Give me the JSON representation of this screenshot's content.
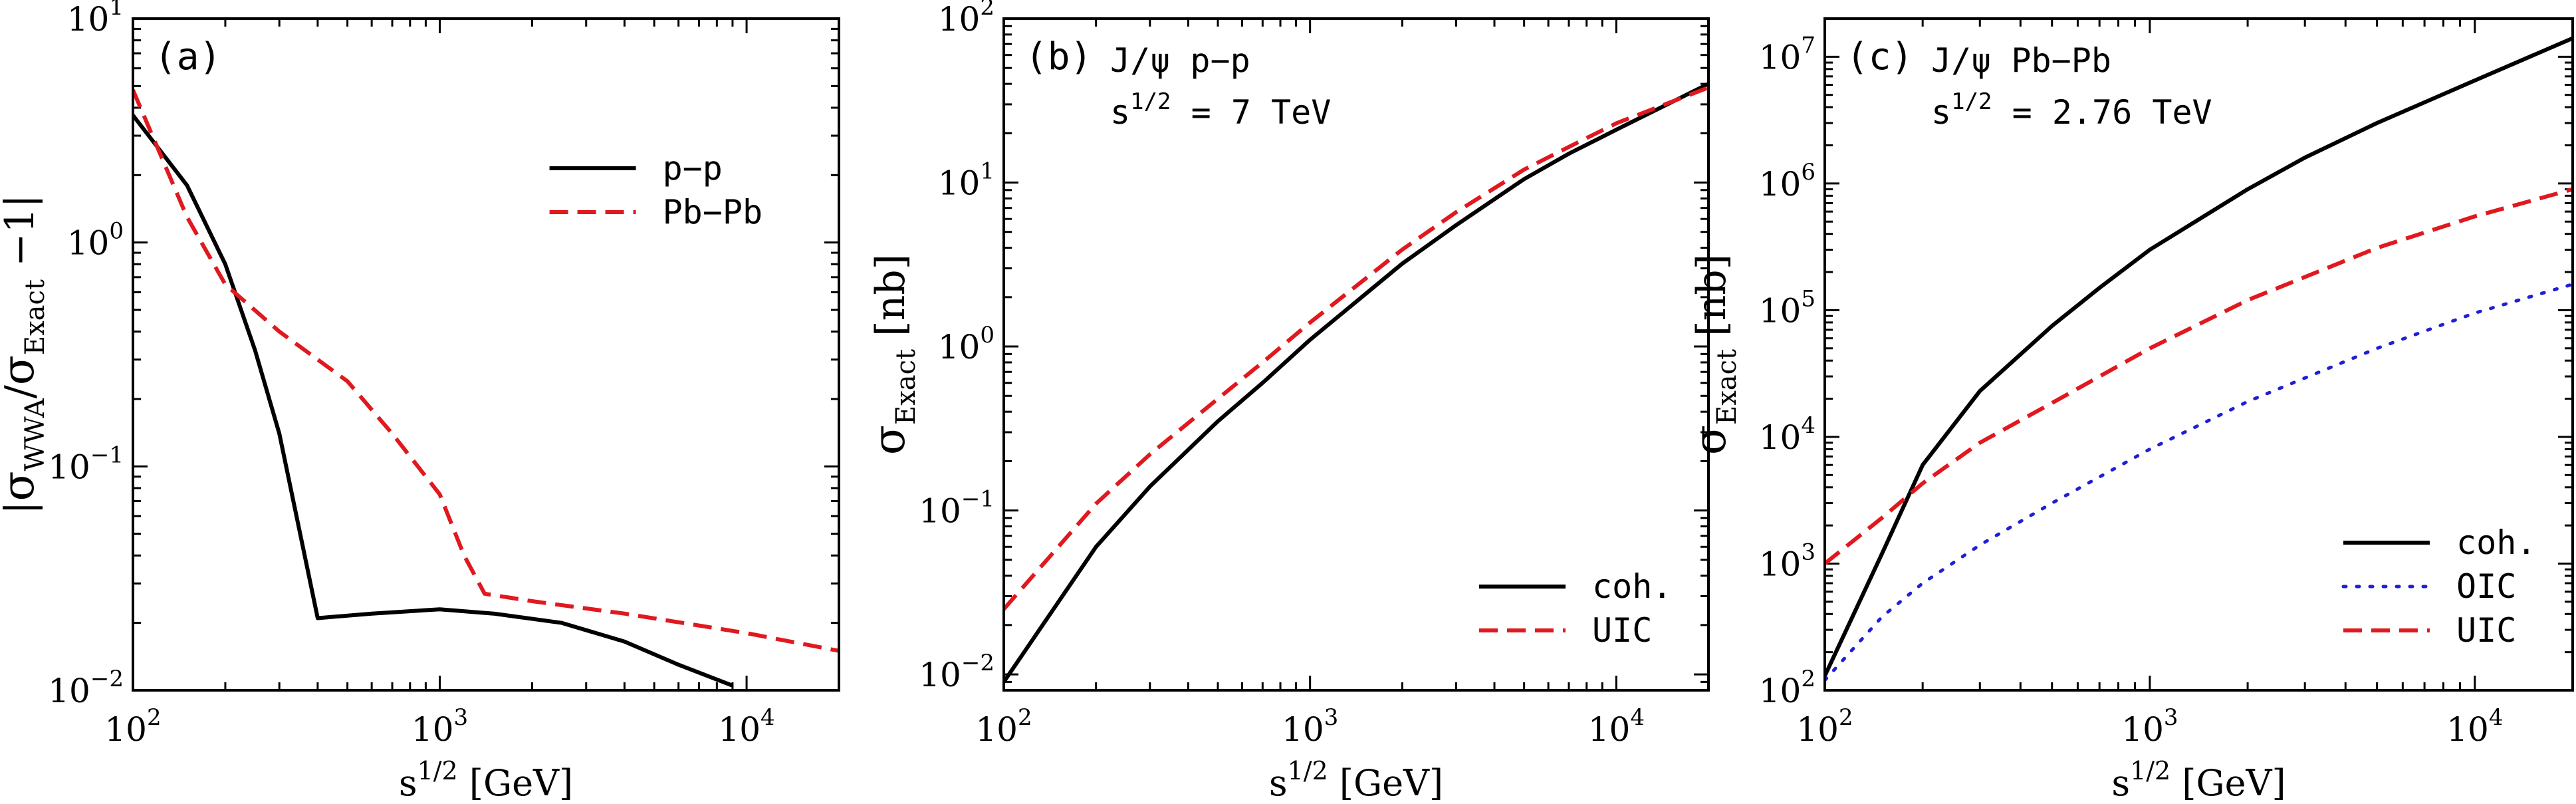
{
  "chart_data": [
    {
      "type": "line",
      "panel_label": "(a)",
      "annotation": [],
      "xlabel_main": "s",
      "xlabel_sup": "1/2",
      "xlabel_unit": " [GeV]",
      "ylabel_parts": {
        "open": "|",
        "sym1": "σ",
        "sub1": "WWA",
        "slash": "/",
        "sym2": "σ",
        "sub2": "Exact",
        "tail": " −1|"
      },
      "xscale": "log",
      "yscale": "log",
      "xlim": [
        100,
        20000
      ],
      "ylim": [
        0.01,
        10
      ],
      "xticks": [
        {
          "v": 100,
          "b": "10",
          "e": "2"
        },
        {
          "v": 1000,
          "b": "10",
          "e": "3"
        },
        {
          "v": 10000,
          "b": "10",
          "e": "4"
        }
      ],
      "yticks": [
        {
          "v": 0.01,
          "b": "10",
          "e": "−2"
        },
        {
          "v": 0.1,
          "b": "10",
          "e": "−1"
        },
        {
          "v": 1,
          "b": "10",
          "e": "0"
        },
        {
          "v": 10,
          "b": "10",
          "e": "1"
        }
      ],
      "legend_position": "upper-right",
      "series": [
        {
          "name": "p−p",
          "color": "#000000",
          "style": "solid",
          "x": [
            100,
            150,
            200,
            250,
            300,
            400,
            600,
            1000,
            1500,
            2500,
            4000,
            6000,
            9000
          ],
          "y": [
            3.7,
            1.8,
            0.8,
            0.33,
            0.14,
            0.021,
            0.022,
            0.023,
            0.022,
            0.02,
            0.0165,
            0.013,
            0.0105
          ]
        },
        {
          "name": "Pb−Pb",
          "color": "#e0191f",
          "style": "dashed",
          "x": [
            100,
            150,
            200,
            300,
            500,
            700,
            1000,
            1200,
            1400,
            2000,
            4000,
            10000,
            20000
          ],
          "y": [
            4.8,
            1.3,
            0.65,
            0.4,
            0.24,
            0.14,
            0.075,
            0.04,
            0.027,
            0.025,
            0.022,
            0.018,
            0.015
          ]
        }
      ]
    },
    {
      "type": "line",
      "panel_label": "(b)",
      "annotation": [
        {
          "main": "J/ψ p−p"
        },
        {
          "main": "s",
          "sup": "1/2",
          "tail": " = 7 TeV"
        }
      ],
      "xlabel_main": "s",
      "xlabel_sup": "1/2",
      "xlabel_unit": " [GeV]",
      "ylabel_parts": {
        "sym1": "σ",
        "sub1": "Exact",
        "tail": " [nb]"
      },
      "xscale": "log",
      "yscale": "log",
      "xlim": [
        100,
        20000
      ],
      "ylim": [
        0.008,
        100
      ],
      "xticks": [
        {
          "v": 100,
          "b": "10",
          "e": "2"
        },
        {
          "v": 1000,
          "b": "10",
          "e": "3"
        },
        {
          "v": 10000,
          "b": "10",
          "e": "4"
        }
      ],
      "yticks": [
        {
          "v": 0.01,
          "b": "10",
          "e": "−2"
        },
        {
          "v": 0.1,
          "b": "10",
          "e": "−1"
        },
        {
          "v": 1,
          "b": "10",
          "e": "0"
        },
        {
          "v": 10,
          "b": "10",
          "e": "1"
        },
        {
          "v": 100,
          "b": "10",
          "e": "2"
        }
      ],
      "legend_position": "lower-right",
      "series": [
        {
          "name": "coh.",
          "color": "#000000",
          "style": "solid",
          "x": [
            100,
            200,
            300,
            500,
            700,
            1000,
            2000,
            3000,
            5000,
            7000,
            10000,
            20000
          ],
          "y": [
            0.009,
            0.06,
            0.14,
            0.35,
            0.6,
            1.1,
            3.2,
            5.5,
            10.5,
            15,
            21,
            40
          ]
        },
        {
          "name": "UIC",
          "color": "#e0191f",
          "style": "dashed",
          "x": [
            100,
            200,
            300,
            500,
            700,
            1000,
            2000,
            3000,
            5000,
            7000,
            10000,
            20000
          ],
          "y": [
            0.025,
            0.11,
            0.22,
            0.48,
            0.8,
            1.4,
            3.9,
            6.6,
            12,
            16.5,
            23,
            38
          ]
        }
      ]
    },
    {
      "type": "line",
      "panel_label": "(c)",
      "annotation": [
        {
          "main": "J/ψ Pb−Pb"
        },
        {
          "main": "s",
          "sup": "1/2",
          "tail": " = 2.76 TeV"
        }
      ],
      "xlabel_main": "s",
      "xlabel_sup": "1/2",
      "xlabel_unit": " [GeV]",
      "ylabel_parts": {
        "sym1": "σ",
        "sub1": "Exact",
        "tail": " [nb]"
      },
      "xscale": "log",
      "yscale": "log",
      "xlim": [
        100,
        20000
      ],
      "ylim": [
        100,
        20000000
      ],
      "xticks": [
        {
          "v": 100,
          "b": "10",
          "e": "2"
        },
        {
          "v": 1000,
          "b": "10",
          "e": "3"
        },
        {
          "v": 10000,
          "b": "10",
          "e": "4"
        }
      ],
      "yticks": [
        {
          "v": 100,
          "b": "10",
          "e": "2"
        },
        {
          "v": 1000,
          "b": "10",
          "e": "3"
        },
        {
          "v": 10000,
          "b": "10",
          "e": "4"
        },
        {
          "v": 100000,
          "b": "10",
          "e": "5"
        },
        {
          "v": 1000000,
          "b": "10",
          "e": "6"
        },
        {
          "v": 10000000,
          "b": "10",
          "e": "7"
        }
      ],
      "legend_position": "lower-right",
      "series": [
        {
          "name": "coh.",
          "color": "#000000",
          "style": "solid",
          "x": [
            100,
            150,
            200,
            300,
            500,
            700,
            1000,
            2000,
            3000,
            5000,
            10000,
            20000
          ],
          "y": [
            130,
            1200,
            6000,
            23000,
            75000,
            150000,
            300000,
            900000,
            1600000,
            3000000,
            6500000,
            14000000
          ]
        },
        {
          "name": "OIC",
          "color": "#1f1fd6",
          "style": "dotted",
          "x": [
            100,
            150,
            200,
            300,
            500,
            1000,
            2000,
            5000,
            10000,
            20000
          ],
          "y": [
            120,
            380,
            700,
            1400,
            3000,
            8000,
            19000,
            50000,
            95000,
            160000
          ]
        },
        {
          "name": "UIC",
          "color": "#e0191f",
          "style": "dashed",
          "x": [
            100,
            150,
            200,
            300,
            500,
            1000,
            2000,
            5000,
            10000,
            20000
          ],
          "y": [
            1000,
            2300,
            4300,
            9000,
            18500,
            50000,
            120000,
            310000,
            550000,
            900000
          ]
        }
      ]
    }
  ]
}
